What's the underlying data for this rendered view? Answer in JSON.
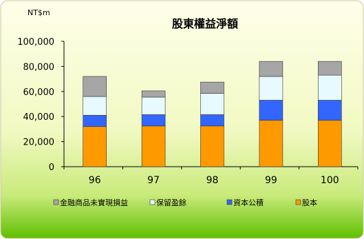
{
  "chart_data": {
    "type": "bar",
    "stacked": true,
    "title": "股東權益淨額",
    "unit_label": "NT$m",
    "categories": [
      "96",
      "97",
      "98",
      "99",
      "100"
    ],
    "ylim": [
      0,
      100000
    ],
    "yticks": [
      0,
      20000,
      40000,
      60000,
      80000,
      100000
    ],
    "ytick_labels": [
      "0",
      "20,000",
      "40,000",
      "60,000",
      "80,000",
      "100,000"
    ],
    "grid": false,
    "legend_position": "bottom",
    "series": [
      {
        "name": "股本",
        "color": "#FF9900",
        "values": [
          32000,
          32500,
          32500,
          37000,
          37000
        ]
      },
      {
        "name": "資本公積",
        "color": "#3366FF",
        "values": [
          9000,
          9000,
          9000,
          16000,
          16000
        ]
      },
      {
        "name": "保留盈餘",
        "color": "#E6FAFF",
        "values": [
          15000,
          14000,
          17000,
          19000,
          20000
        ]
      },
      {
        "name": "金融商品未實現損益",
        "color": "#A6A6A6",
        "values": [
          16000,
          5000,
          9000,
          12000,
          11000
        ]
      }
    ],
    "legend_order": [
      "金融商品未實現損益",
      "保留盈餘",
      "資本公積",
      "股本"
    ],
    "colors": {
      "bg_top": "#FFFFE6",
      "bg_mid": "#E9F5A8",
      "bg_bottom": "#66CC00",
      "border": "#C8C8A0"
    }
  }
}
